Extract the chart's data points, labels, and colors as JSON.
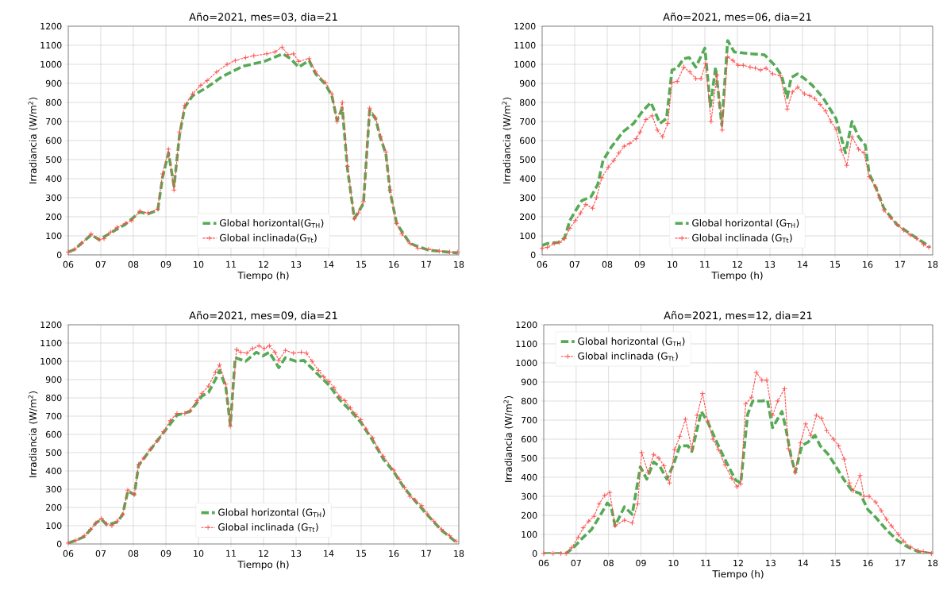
{
  "chart_data": [
    {
      "type": "line",
      "title": "Año=2021, mes=03, dia=21",
      "xlabel": "Tiempo (h)",
      "ylabel": "Irradiancia (W/m$^{2}$)",
      "xlim": [
        6,
        18
      ],
      "ylim": [
        0,
        1200
      ],
      "xticks": [
        {
          "value": 6,
          "label": "06"
        },
        {
          "value": 7,
          "label": "07"
        },
        {
          "value": 8,
          "label": "08"
        },
        {
          "value": 9,
          "label": "09"
        },
        10,
        11,
        12,
        13,
        14,
        15,
        16,
        17,
        18
      ],
      "yticks": [
        0,
        100,
        200,
        300,
        400,
        500,
        600,
        700,
        800,
        900,
        1000,
        1100,
        1200
      ],
      "grid": true,
      "legend": "bottom",
      "series": [
        {
          "name": "Global horizontal(G$_{TH}$)",
          "color": "#55aa55",
          "line_style": "dashed",
          "marker": "none",
          "x": [
            6.0,
            6.2,
            6.4,
            6.7,
            6.95,
            7.3,
            7.75,
            8.2,
            8.45,
            8.75,
            8.9,
            9.08,
            9.25,
            9.42,
            9.58,
            9.82,
            10.27,
            10.72,
            11.37,
            12.02,
            12.59,
            12.83,
            13.08,
            13.4,
            13.6,
            13.9,
            14.1,
            14.26,
            14.42,
            14.58,
            14.79,
            15.07,
            15.26,
            15.44,
            15.6,
            15.76,
            15.89,
            16.09,
            16.5,
            17.07,
            17.96
          ],
          "values": [
            15,
            30,
            60,
            105,
            80,
            115,
            160,
            225,
            215,
            235,
            410,
            535,
            360,
            630,
            775,
            835,
            880,
            935,
            990,
            1015,
            1055,
            1030,
            985,
            1020,
            950,
            895,
            835,
            705,
            770,
            450,
            190,
            270,
            760,
            715,
            610,
            530,
            330,
            165,
            60,
            25,
            10
          ]
        },
        {
          "name": "Global inclinada(G$_{Tt}$)",
          "color": "#ff4d4d",
          "line_style": "dashed",
          "marker": "cross",
          "x": [
            6.0,
            6.2,
            6.4,
            6.7,
            6.95,
            7.1,
            7.3,
            7.5,
            7.75,
            7.95,
            8.2,
            8.45,
            8.75,
            8.9,
            9.08,
            9.25,
            9.42,
            9.58,
            9.82,
            10.07,
            10.27,
            10.56,
            10.88,
            11.13,
            11.45,
            11.7,
            12.1,
            12.35,
            12.57,
            12.75,
            12.92,
            13.08,
            13.4,
            13.6,
            13.9,
            14.1,
            14.26,
            14.42,
            14.58,
            14.79,
            14.91,
            15.07,
            15.26,
            15.44,
            15.6,
            15.76,
            15.89,
            16.09,
            16.25,
            16.5,
            16.74,
            17.07,
            17.4,
            17.72,
            17.96
          ],
          "values": [
            15,
            30,
            60,
            110,
            80,
            85,
            120,
            145,
            165,
            180,
            230,
            220,
            240,
            425,
            555,
            340,
            645,
            785,
            845,
            890,
            915,
            960,
            1000,
            1020,
            1035,
            1045,
            1055,
            1065,
            1090,
            1050,
            1055,
            1015,
            1030,
            960,
            905,
            845,
            700,
            800,
            465,
            190,
            220,
            280,
            770,
            720,
            620,
            540,
            340,
            165,
            110,
            60,
            35,
            30,
            20,
            15,
            15
          ]
        }
      ]
    },
    {
      "type": "line",
      "title": "Año=2021, mes=06, dia=21",
      "xlabel": "Tiempo (h)",
      "ylabel": "Irradiancia (W/m$^{2}$)",
      "xlim": [
        6,
        18
      ],
      "ylim": [
        0,
        1200
      ],
      "xticks": [
        {
          "value": 6,
          "label": "06"
        },
        {
          "value": 7,
          "label": "07"
        },
        {
          "value": 8,
          "label": "08"
        },
        {
          "value": 9,
          "label": "09"
        },
        10,
        11,
        12,
        13,
        14,
        15,
        16,
        17,
        18
      ],
      "yticks": [
        0,
        100,
        200,
        300,
        400,
        500,
        600,
        700,
        800,
        900,
        1000,
        1100,
        1200
      ],
      "grid": true,
      "legend": "bottom",
      "series": [
        {
          "name": "Global horizontal (G$_{TH}$)",
          "color": "#55aa55",
          "line_style": "dashed",
          "marker": "none",
          "x": [
            6.0,
            6.16,
            6.49,
            6.69,
            6.85,
            7.02,
            7.22,
            7.5,
            7.71,
            7.87,
            8.12,
            8.48,
            8.81,
            9.09,
            9.34,
            9.62,
            9.82,
            9.99,
            10.15,
            10.35,
            10.52,
            10.72,
            11.0,
            11.17,
            11.33,
            11.52,
            11.7,
            11.9,
            12.43,
            12.83,
            13.12,
            13.36,
            13.53,
            13.65,
            13.85,
            14.06,
            14.3,
            14.63,
            15.03,
            15.32,
            15.52,
            15.72,
            15.93,
            16.05,
            16.25,
            16.5,
            16.9,
            17.31,
            17.72,
            17.92
          ],
          "values": [
            50,
            60,
            65,
            90,
            180,
            230,
            285,
            305,
            370,
            495,
            565,
            645,
            690,
            755,
            800,
            690,
            715,
            970,
            980,
            1030,
            1035,
            985,
            1085,
            780,
            985,
            680,
            1125,
            1065,
            1055,
            1050,
            1000,
            940,
            825,
            930,
            950,
            925,
            890,
            825,
            715,
            535,
            700,
            620,
            575,
            425,
            355,
            245,
            160,
            110,
            65,
            40
          ]
        },
        {
          "name": "Global inclinada (G$_{Tt}$)",
          "color": "#ff4d4d",
          "line_style": "dashed",
          "marker": "cross",
          "x": [
            6.0,
            6.16,
            6.37,
            6.53,
            6.69,
            6.85,
            7.02,
            7.18,
            7.34,
            7.55,
            7.67,
            7.83,
            8.03,
            8.2,
            8.36,
            8.52,
            8.69,
            8.89,
            9.01,
            9.19,
            9.38,
            9.54,
            9.7,
            9.86,
            9.99,
            10.15,
            10.35,
            10.54,
            10.72,
            10.88,
            11.02,
            11.19,
            11.37,
            11.53,
            11.7,
            11.86,
            12.02,
            12.18,
            12.39,
            12.55,
            12.71,
            12.88,
            13.08,
            13.32,
            13.53,
            13.69,
            13.85,
            14.06,
            14.22,
            14.38,
            14.54,
            14.71,
            14.87,
            15.03,
            15.19,
            15.36,
            15.52,
            15.72,
            15.89,
            16.05,
            16.25,
            16.37,
            16.5,
            16.7,
            16.9,
            17.11,
            17.31,
            17.51,
            17.72,
            17.88
          ],
          "values": [
            35,
            40,
            60,
            65,
            85,
            140,
            180,
            220,
            265,
            245,
            300,
            405,
            460,
            495,
            535,
            570,
            585,
            610,
            645,
            710,
            730,
            655,
            620,
            690,
            905,
            910,
            985,
            960,
            925,
            925,
            1005,
            700,
            945,
            655,
            1040,
            1020,
            995,
            995,
            985,
            980,
            970,
            980,
            950,
            940,
            765,
            855,
            880,
            845,
            835,
            820,
            790,
            755,
            700,
            660,
            550,
            470,
            620,
            555,
            535,
            410,
            355,
            300,
            235,
            195,
            160,
            130,
            105,
            85,
            55,
            40
          ]
        }
      ]
    },
    {
      "type": "line",
      "title": "Año=2021, mes=09, dia=21",
      "xlabel": "Tiempo (h)",
      "ylabel": "Irradiancia (W/m$^{2}$)",
      "xlim": [
        6,
        18
      ],
      "ylim": [
        0,
        1200
      ],
      "xticks": [
        {
          "value": 6,
          "label": "06"
        },
        {
          "value": 7,
          "label": "07"
        },
        {
          "value": 8,
          "label": "08"
        },
        {
          "value": 9,
          "label": "09"
        },
        10,
        11,
        12,
        13,
        14,
        15,
        16,
        17,
        18
      ],
      "yticks": [
        0,
        100,
        200,
        300,
        400,
        500,
        600,
        700,
        800,
        900,
        1000,
        1100,
        1200
      ],
      "grid": true,
      "legend": "bottom",
      "series": [
        {
          "name": "Global horizontal (G$_{TH}$)",
          "color": "#55aa55",
          "line_style": "dashed",
          "marker": "none",
          "x": [
            6.0,
            6.24,
            6.49,
            6.69,
            6.85,
            7.02,
            7.18,
            7.5,
            7.67,
            7.83,
            8.03,
            8.16,
            8.52,
            8.93,
            9.34,
            9.74,
            10.11,
            10.31,
            10.52,
            10.65,
            10.84,
            10.98,
            11.13,
            11.45,
            11.78,
            11.98,
            12.18,
            12.47,
            12.67,
            13.0,
            13.24,
            13.44,
            13.69,
            14.01,
            14.34,
            14.67,
            14.99,
            15.36,
            15.68,
            16.0,
            16.33,
            16.66,
            17.03,
            17.47,
            17.92
          ],
          "values": [
            5,
            20,
            40,
            80,
            115,
            135,
            105,
            120,
            160,
            290,
            270,
            430,
            515,
            610,
            705,
            725,
            810,
            830,
            900,
            950,
            860,
            650,
            1020,
            1000,
            1050,
            1030,
            1050,
            965,
            1020,
            1000,
            1005,
            970,
            925,
            870,
            790,
            730,
            665,
            565,
            465,
            395,
            305,
            235,
            160,
            75,
            10
          ]
        },
        {
          "name": "Global inclinada (G$_{Tt}$)",
          "color": "#ff4d4d",
          "line_style": "dashed",
          "marker": "cross",
          "x": [
            6.0,
            6.24,
            6.49,
            6.69,
            6.85,
            7.02,
            7.18,
            7.34,
            7.5,
            7.67,
            7.83,
            8.03,
            8.16,
            8.32,
            8.52,
            8.73,
            8.93,
            9.13,
            9.34,
            9.58,
            9.74,
            9.95,
            10.11,
            10.31,
            10.52,
            10.65,
            10.84,
            10.98,
            11.17,
            11.3,
            11.49,
            11.66,
            11.86,
            12.02,
            12.18,
            12.35,
            12.47,
            12.67,
            12.92,
            13.16,
            13.32,
            13.49,
            13.69,
            13.85,
            14.01,
            14.17,
            14.34,
            14.5,
            14.67,
            14.83,
            14.99,
            15.15,
            15.36,
            15.52,
            15.68,
            16.0,
            16.17,
            16.33,
            16.5,
            16.66,
            16.86,
            17.03,
            17.23,
            17.47,
            17.72,
            17.92
          ],
          "values": [
            5,
            20,
            45,
            80,
            115,
            140,
            110,
            100,
            125,
            160,
            295,
            270,
            435,
            470,
            520,
            565,
            615,
            675,
            715,
            715,
            730,
            785,
            825,
            865,
            940,
            980,
            875,
            645,
            1065,
            1050,
            1045,
            1070,
            1085,
            1070,
            1085,
            1050,
            1005,
            1060,
            1045,
            1050,
            1045,
            1000,
            950,
            915,
            890,
            855,
            805,
            785,
            745,
            710,
            680,
            630,
            580,
            520,
            480,
            405,
            355,
            310,
            260,
            240,
            210,
            165,
            125,
            80,
            45,
            15
          ]
        }
      ]
    },
    {
      "type": "line",
      "title": "Año=2021, mes=12, dia=21",
      "xlabel": "Tiempo (h)",
      "ylabel": "Irradiancia (W/m$^{2}$)",
      "xlim": [
        6,
        18
      ],
      "ylim": [
        0,
        1200
      ],
      "xticks": [
        {
          "value": 6,
          "label": "06"
        },
        {
          "value": 7,
          "label": "07"
        },
        {
          "value": 8,
          "label": "08"
        },
        {
          "value": 9,
          "label": "09"
        },
        10,
        11,
        12,
        13,
        14,
        15,
        16,
        17,
        18
      ],
      "yticks": [
        0,
        100,
        200,
        300,
        400,
        500,
        600,
        700,
        800,
        900,
        1000,
        1100,
        1200
      ],
      "grid": true,
      "legend": "top left",
      "series": [
        {
          "name": "Global horizontal (G$_{TH}$)",
          "color": "#55aa55",
          "line_style": "dashed",
          "marker": "none",
          "x": [
            6.0,
            6.69,
            6.94,
            7.22,
            7.47,
            7.71,
            7.96,
            8.08,
            8.2,
            8.49,
            8.73,
            8.98,
            9.18,
            9.39,
            9.59,
            9.8,
            10.0,
            10.2,
            10.45,
            10.57,
            10.86,
            11.06,
            11.35,
            11.63,
            11.92,
            12.08,
            12.29,
            12.45,
            12.73,
            12.9,
            13.06,
            13.35,
            13.47,
            13.63,
            13.76,
            13.96,
            14.16,
            14.37,
            14.53,
            14.78,
            15.02,
            15.27,
            15.51,
            15.76,
            16.0,
            16.24,
            16.57,
            16.9,
            17.22,
            17.55,
            17.96
          ],
          "values": [
            0,
            0,
            35,
            85,
            125,
            190,
            265,
            245,
            145,
            245,
            205,
            455,
            390,
            480,
            455,
            390,
            465,
            565,
            565,
            535,
            745,
            690,
            580,
            480,
            385,
            370,
            730,
            800,
            800,
            805,
            660,
            745,
            655,
            510,
            425,
            565,
            585,
            620,
            565,
            520,
            455,
            385,
            330,
            315,
            230,
            190,
            125,
            70,
            35,
            10,
            0
          ]
        },
        {
          "name": "Global inclinada (G$_{Tt}$)",
          "color": "#ff4d4d",
          "line_style": "dashed",
          "marker": "cross",
          "x": [
            6.0,
            6.29,
            6.53,
            6.69,
            6.86,
            7.06,
            7.22,
            7.39,
            7.55,
            7.71,
            7.88,
            8.04,
            8.2,
            8.49,
            8.73,
            8.9,
            9.02,
            9.22,
            9.39,
            9.55,
            9.71,
            9.88,
            10.04,
            10.2,
            10.37,
            10.57,
            10.73,
            10.9,
            11.06,
            11.22,
            11.39,
            11.59,
            11.8,
            11.96,
            12.08,
            12.23,
            12.41,
            12.56,
            12.73,
            12.88,
            13.06,
            13.22,
            13.43,
            13.55,
            13.76,
            13.92,
            14.08,
            14.24,
            14.41,
            14.57,
            14.73,
            14.94,
            15.1,
            15.27,
            15.43,
            15.55,
            15.76,
            15.88,
            16.04,
            16.24,
            16.41,
            16.57,
            16.73,
            16.94,
            17.1,
            17.31,
            17.55,
            17.71,
            17.96
          ],
          "values": [
            0,
            0,
            0,
            0,
            30,
            85,
            135,
            170,
            195,
            260,
            305,
            320,
            145,
            175,
            160,
            260,
            530,
            425,
            520,
            500,
            460,
            370,
            545,
            615,
            705,
            550,
            725,
            840,
            695,
            600,
            545,
            465,
            395,
            350,
            365,
            785,
            820,
            950,
            910,
            910,
            725,
            800,
            865,
            550,
            425,
            580,
            680,
            620,
            725,
            710,
            645,
            600,
            565,
            495,
            370,
            330,
            410,
            300,
            300,
            270,
            225,
            180,
            145,
            100,
            65,
            35,
            15,
            10,
            0
          ]
        }
      ]
    }
  ]
}
